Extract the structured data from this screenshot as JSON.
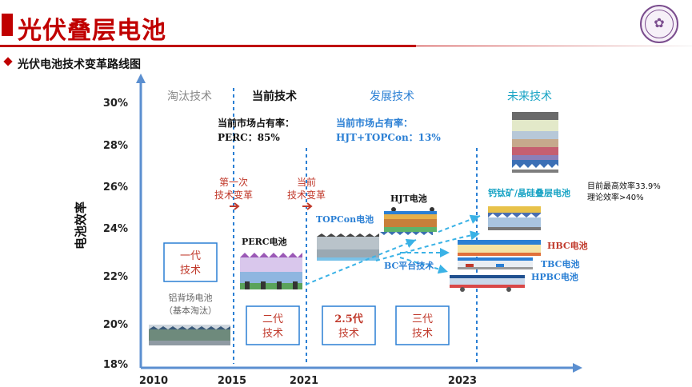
{
  "header": {
    "title": "光伏叠层电池",
    "subtitle": "光伏电池技术变革路线图"
  },
  "chart_data": {
    "type": "diagram",
    "ylabel": "电池效率",
    "y_ticks": [
      "18%",
      "20%",
      "22%",
      "24%",
      "26%",
      "28%",
      "30%"
    ],
    "x_ticks": [
      "2010",
      "2015",
      "2021",
      "2023"
    ],
    "eras": [
      {
        "label": "淘汰技术",
        "color": "#888888"
      },
      {
        "label": "当前技术",
        "color": "#111111"
      },
      {
        "label": "发展技术",
        "color": "#2a7fd4"
      },
      {
        "label": "未来技术",
        "color": "#17a3c4"
      }
    ],
    "market": [
      {
        "title": "当前市场占有率：",
        "value": "PERC：85%"
      },
      {
        "title": "当前市场占有率：",
        "value": "HJT+TOPCon：13%"
      }
    ],
    "revolutions": [
      {
        "line1": "第一次",
        "line2": "技术变革"
      },
      {
        "line1": "当前",
        "line2": "技术变革"
      }
    ],
    "generations": [
      {
        "line1": "一代",
        "line2": "技术"
      },
      {
        "line1": "二代",
        "line2": "技术"
      },
      {
        "line1": "2.5代",
        "line2": "技术"
      },
      {
        "line1": "三代",
        "line2": "技术"
      }
    ],
    "cells": {
      "bsf": {
        "line1": "铝背场电池",
        "line2": "（基本淘汰）"
      },
      "perc": "PERC电池",
      "topcon": "TOPCon电池",
      "hjt": "HJT电池",
      "bc_platform": "BC平台技术",
      "tandem": "钙钛矿/晶硅叠层电池",
      "hbc": "HBC电池",
      "tbc": "TBC电池",
      "hpbc": "HPBC电池"
    },
    "notes": [
      "目前最高效率33.9%",
      "理论效率>40%"
    ]
  }
}
